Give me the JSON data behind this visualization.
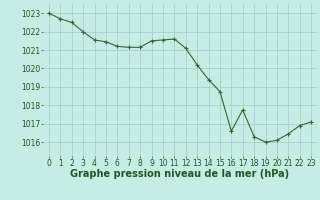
{
  "x": [
    0,
    1,
    2,
    3,
    4,
    5,
    6,
    7,
    8,
    9,
    10,
    11,
    12,
    13,
    14,
    15,
    16,
    17,
    18,
    19,
    20,
    21,
    22,
    23
  ],
  "y": [
    1023.0,
    1022.7,
    1022.5,
    1022.0,
    1021.55,
    1021.45,
    1021.2,
    1021.15,
    1021.15,
    1021.5,
    1021.55,
    1021.6,
    1021.1,
    1020.2,
    1019.4,
    1018.75,
    1016.6,
    1017.75,
    1016.3,
    1016.0,
    1016.1,
    1016.45,
    1016.9,
    1017.1
  ],
  "line_color": "#2d6a2d",
  "marker": "+",
  "marker_size": 3,
  "marker_color": "#2d6a2d",
  "bg_color": "#c5ece5",
  "grid_color": "#9ecec6",
  "xlabel": "Graphe pression niveau de la mer (hPa)",
  "xlabel_color": "#1a5c1a",
  "xlabel_fontsize": 7,
  "tick_color": "#1a5c1a",
  "tick_fontsize": 5.5,
  "ylim": [
    1015.25,
    1023.5
  ],
  "yticks": [
    1016,
    1017,
    1018,
    1019,
    1020,
    1021,
    1022,
    1023
  ],
  "xlim": [
    -0.5,
    23.5
  ],
  "xticks": [
    0,
    1,
    2,
    3,
    4,
    5,
    6,
    7,
    8,
    9,
    10,
    11,
    12,
    13,
    14,
    15,
    16,
    17,
    18,
    19,
    20,
    21,
    22,
    23
  ]
}
